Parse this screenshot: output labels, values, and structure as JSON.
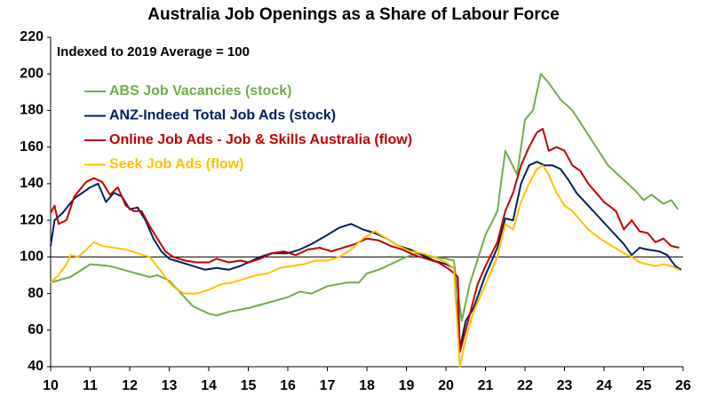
{
  "chart_data": {
    "type": "line",
    "title": "Australia Job Openings as a Share of Labour Force",
    "subtitle": "Indexed to 2019 Average = 100",
    "xlim": [
      10,
      26
    ],
    "xticks": [
      10,
      11,
      12,
      13,
      14,
      15,
      16,
      17,
      18,
      19,
      20,
      21,
      22,
      23,
      24,
      25,
      26
    ],
    "ylim": [
      40,
      220
    ],
    "yticks": [
      40,
      60,
      80,
      100,
      120,
      140,
      160,
      180,
      200,
      220
    ],
    "grid": false,
    "reference_line": 100,
    "legend": "upper-left",
    "series": [
      {
        "name": "ABS Job Vacancies (stock)",
        "color": "#70ad47",
        "x": [
          10.0,
          10.5,
          11.0,
          11.5,
          12.0,
          12.5,
          12.7,
          13.0,
          13.3,
          13.6,
          14.0,
          14.2,
          14.5,
          15.0,
          15.5,
          16.0,
          16.3,
          16.6,
          17.0,
          17.5,
          17.8,
          18.0,
          18.3,
          18.6,
          19.0,
          19.3,
          19.6,
          20.0,
          20.2,
          20.4,
          20.6,
          21.0,
          21.3,
          21.5,
          21.8,
          22.0,
          22.2,
          22.4,
          22.6,
          22.9,
          23.2,
          23.5,
          23.8,
          24.1,
          24.5,
          24.8,
          25.0,
          25.2,
          25.5,
          25.7,
          25.87
        ],
        "values": [
          86,
          89,
          96,
          95,
          92,
          89,
          90,
          87,
          80,
          73,
          69,
          68,
          70,
          72,
          75,
          78,
          81,
          80,
          84,
          86,
          86,
          91,
          93,
          96,
          100,
          102,
          100,
          99,
          98,
          65,
          85,
          112,
          125,
          158,
          145,
          175,
          180,
          200,
          195,
          186,
          180,
          170,
          160,
          150,
          142,
          136,
          131,
          134,
          129,
          131,
          126
        ]
      },
      {
        "name": "ANZ-Indeed Total Job Ads (stock)",
        "color": "#002060",
        "x": [
          10.0,
          10.1,
          10.3,
          10.6,
          11.0,
          11.2,
          11.4,
          11.6,
          11.8,
          12.0,
          12.2,
          12.4,
          12.6,
          12.8,
          13.0,
          13.3,
          13.6,
          13.9,
          14.2,
          14.5,
          14.8,
          15.0,
          15.3,
          15.6,
          16.0,
          16.3,
          16.6,
          17.0,
          17.3,
          17.6,
          17.9,
          18.2,
          18.5,
          18.8,
          19.1,
          19.4,
          19.7,
          20.0,
          20.2,
          20.35,
          20.5,
          20.7,
          21.0,
          21.3,
          21.5,
          21.7,
          21.9,
          22.1,
          22.3,
          22.5,
          22.7,
          22.9,
          23.1,
          23.3,
          23.6,
          23.9,
          24.2,
          24.5,
          24.7,
          24.9,
          25.1,
          25.4,
          25.6,
          25.8,
          25.95
        ],
        "values": [
          106,
          120,
          124,
          132,
          138,
          140,
          130,
          135,
          133,
          126,
          127,
          120,
          110,
          103,
          99,
          97,
          95,
          93,
          94,
          93,
          95,
          97,
          100,
          102,
          102,
          104,
          107,
          112,
          116,
          118,
          115,
          113,
          110,
          106,
          104,
          101,
          98,
          96,
          94,
          50,
          65,
          72,
          90,
          105,
          121,
          120,
          140,
          150,
          152,
          150,
          150,
          148,
          142,
          135,
          128,
          121,
          114,
          107,
          101,
          105,
          104,
          103,
          101,
          95,
          93
        ]
      },
      {
        "name": "Online Job Ads - Job & Skills Australia (flow)",
        "color": "#c00000",
        "x": [
          10.0,
          10.1,
          10.2,
          10.4,
          10.6,
          10.9,
          11.1,
          11.3,
          11.5,
          11.7,
          11.9,
          12.1,
          12.3,
          12.5,
          12.7,
          12.9,
          13.1,
          13.4,
          13.7,
          14.0,
          14.2,
          14.5,
          14.8,
          15.0,
          15.3,
          15.6,
          15.9,
          16.2,
          16.5,
          16.8,
          17.1,
          17.4,
          17.7,
          18.0,
          18.3,
          18.6,
          18.9,
          19.2,
          19.5,
          19.8,
          20.1,
          20.3,
          20.35,
          20.5,
          20.8,
          21.0,
          21.3,
          21.5,
          21.7,
          21.9,
          22.1,
          22.3,
          22.45,
          22.6,
          22.8,
          23.0,
          23.2,
          23.4,
          23.6,
          23.8,
          24.0,
          24.3,
          24.5,
          24.7,
          24.9,
          25.1,
          25.3,
          25.5,
          25.7,
          25.9
        ],
        "values": [
          124,
          128,
          118,
          120,
          133,
          141,
          143,
          141,
          134,
          138,
          128,
          125,
          125,
          117,
          110,
          103,
          100,
          98,
          97,
          97,
          99,
          97,
          98,
          97,
          99,
          102,
          103,
          101,
          104,
          105,
          103,
          105,
          107,
          110,
          109,
          106,
          104,
          101,
          99,
          97,
          93,
          89,
          48,
          60,
          85,
          95,
          108,
          125,
          135,
          150,
          160,
          168,
          170,
          158,
          160,
          158,
          150,
          147,
          140,
          135,
          130,
          125,
          115,
          120,
          114,
          113,
          108,
          110,
          106,
          105
        ]
      },
      {
        "name": "Seek Job Ads (flow)",
        "color": "#ffc000",
        "x": [
          10.0,
          10.2,
          10.4,
          10.5,
          10.7,
          10.9,
          11.1,
          11.3,
          11.6,
          11.9,
          12.2,
          12.5,
          12.8,
          13.0,
          13.2,
          13.4,
          13.7,
          14.0,
          14.3,
          14.6,
          14.9,
          15.2,
          15.5,
          15.8,
          16.1,
          16.4,
          16.7,
          17.0,
          17.3,
          17.6,
          17.9,
          18.2,
          18.5,
          18.8,
          19.1,
          19.4,
          19.7,
          20.0,
          20.2,
          20.35,
          20.5,
          20.7,
          21.0,
          21.3,
          21.5,
          21.7,
          21.9,
          22.1,
          22.3,
          22.45,
          22.6,
          22.8,
          23.0,
          23.2,
          23.4,
          23.6,
          23.9,
          24.2,
          24.5,
          24.7,
          24.9,
          25.1,
          25.3,
          25.5,
          25.7,
          25.9
        ],
        "values": [
          86,
          90,
          96,
          101,
          100,
          104,
          108,
          106,
          105,
          104,
          102,
          100,
          92,
          86,
          82,
          80,
          80,
          82,
          85,
          86,
          88,
          90,
          91,
          94,
          95,
          96,
          98,
          98,
          100,
          104,
          110,
          114,
          110,
          106,
          103,
          102,
          100,
          97,
          94,
          40,
          55,
          70,
          85,
          100,
          118,
          115,
          130,
          140,
          148,
          150,
          145,
          135,
          128,
          125,
          120,
          115,
          110,
          106,
          102,
          100,
          97,
          96,
          95,
          96,
          95,
          93
        ]
      }
    ]
  }
}
